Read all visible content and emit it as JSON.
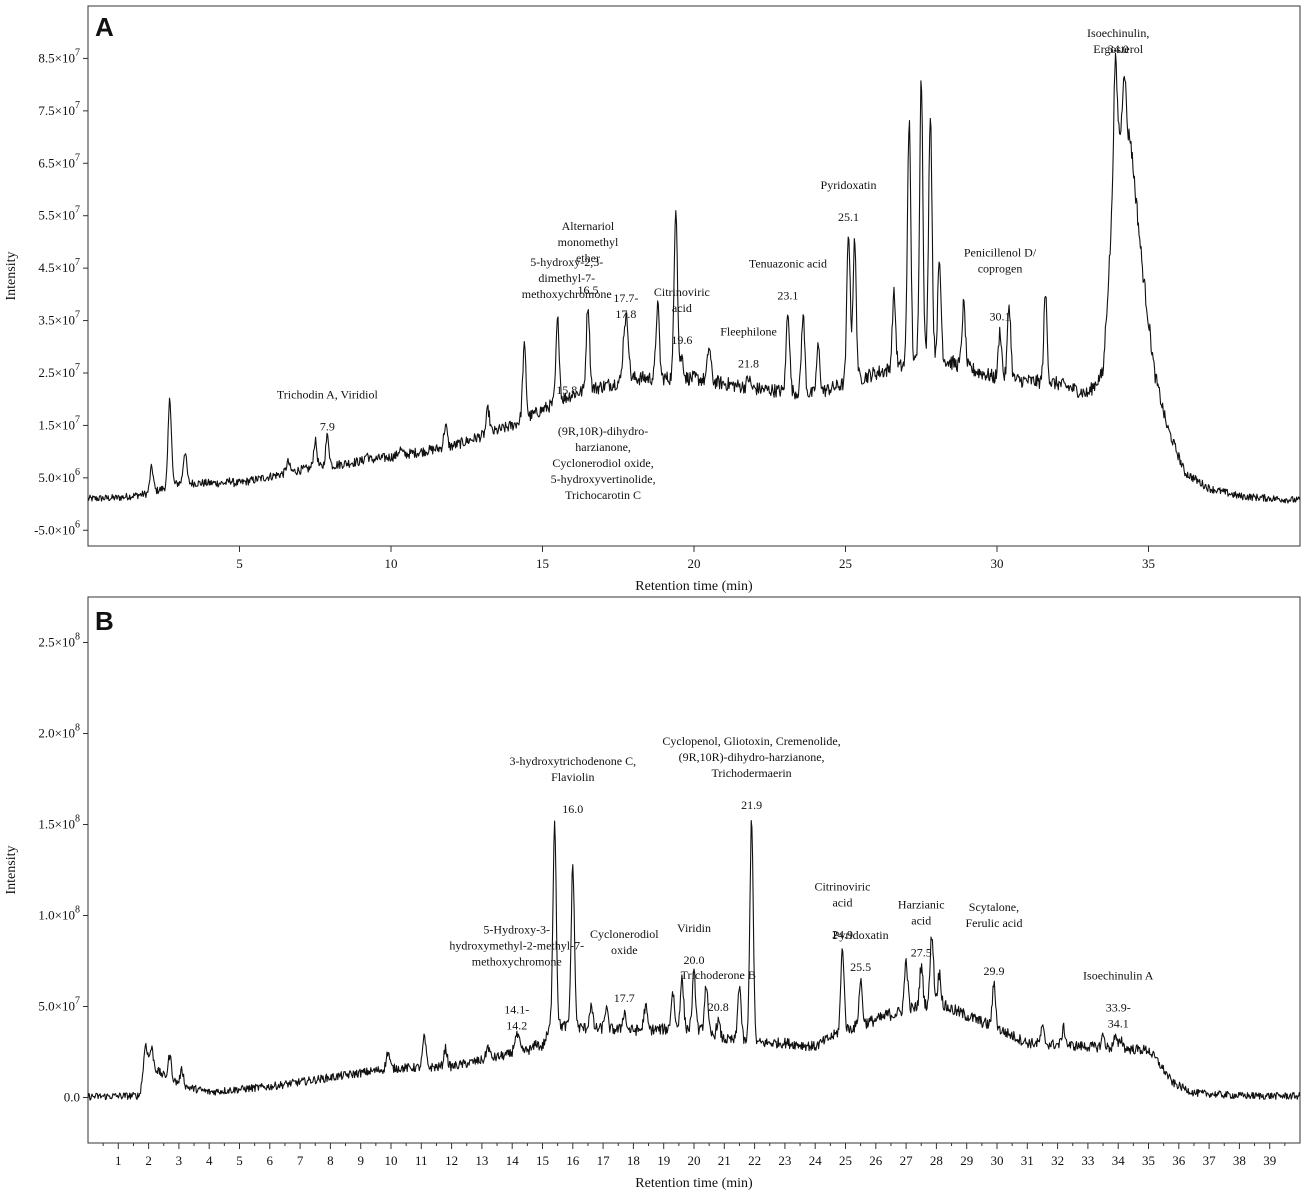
{
  "chart_data": [
    {
      "type": "line",
      "panel": "A",
      "xlabel": "Retention time (min)",
      "ylabel": "Intensity",
      "xlim": [
        0,
        40
      ],
      "ylim": [
        -8000000,
        95000000
      ],
      "x_ticks": [
        5,
        10,
        15,
        20,
        25,
        30,
        35
      ],
      "y_ticks": [
        {
          "value": -5000000,
          "mant": "-5.0×10",
          "exp": "6"
        },
        {
          "value": 5000000,
          "mant": "5.0×10",
          "exp": "6"
        },
        {
          "value": 15000000,
          "mant": "1.5×10",
          "exp": "7"
        },
        {
          "value": 25000000,
          "mant": "2.5×10",
          "exp": "7"
        },
        {
          "value": 35000000,
          "mant": "3.5×10",
          "exp": "7"
        },
        {
          "value": 45000000,
          "mant": "4.5×10",
          "exp": "7"
        },
        {
          "value": 55000000,
          "mant": "5.5×10",
          "exp": "7"
        },
        {
          "value": 65000000,
          "mant": "6.5×10",
          "exp": "7"
        },
        {
          "value": 75000000,
          "mant": "7.5×10",
          "exp": "7"
        },
        {
          "value": 85000000,
          "mant": "8.5×10",
          "exp": "7"
        }
      ],
      "grid": false,
      "baseline": [
        [
          0,
          1000000
        ],
        [
          1,
          1200000
        ],
        [
          2,
          2000000
        ],
        [
          3,
          4000000
        ],
        [
          5,
          4000000
        ],
        [
          7,
          6500000
        ],
        [
          10,
          9000000
        ],
        [
          12,
          11000000
        ],
        [
          14,
          15000000
        ],
        [
          16,
          21000000
        ],
        [
          18,
          24000000
        ],
        [
          20,
          24000000
        ],
        [
          22,
          22000000
        ],
        [
          24,
          21000000
        ],
        [
          26,
          25000000
        ],
        [
          28,
          28000000
        ],
        [
          30,
          24000000
        ],
        [
          32,
          23000000
        ],
        [
          33,
          21000000
        ],
        [
          33.5,
          25000000
        ],
        [
          33.8,
          55000000
        ],
        [
          34,
          70000000
        ],
        [
          34.4,
          70000000
        ],
        [
          34.8,
          45000000
        ],
        [
          35.2,
          25000000
        ],
        [
          35.6,
          15000000
        ],
        [
          36.2,
          6000000
        ],
        [
          37,
          3000000
        ],
        [
          38,
          1500000
        ],
        [
          40,
          700000
        ]
      ],
      "peaks": [
        [
          2.1,
          7000000
        ],
        [
          2.7,
          20000000
        ],
        [
          3.2,
          10000000
        ],
        [
          4.7,
          4500000
        ],
        [
          6.6,
          8000000
        ],
        [
          7.5,
          12000000
        ],
        [
          7.9,
          13000000
        ],
        [
          9.2,
          9500000
        ],
        [
          10.3,
          10500000
        ],
        [
          11.8,
          15000000
        ],
        [
          13.2,
          18000000
        ],
        [
          14.4,
          30000000
        ],
        [
          15.5,
          35000000
        ],
        [
          16.5,
          38000000
        ],
        [
          17.7,
          32000000
        ],
        [
          17.8,
          33000000
        ],
        [
          18.8,
          38000000
        ],
        [
          19.4,
          57000000
        ],
        [
          19.6,
          28000000
        ],
        [
          20.5,
          30000000
        ],
        [
          21.8,
          24000000
        ],
        [
          23.1,
          37000000
        ],
        [
          23.6,
          36000000
        ],
        [
          24.1,
          30000000
        ],
        [
          25.1,
          52000000
        ],
        [
          25.3,
          50000000
        ],
        [
          26.6,
          40000000
        ],
        [
          27.1,
          73000000
        ],
        [
          27.5,
          81000000
        ],
        [
          27.8,
          75000000
        ],
        [
          28.1,
          46000000
        ],
        [
          28.9,
          38000000
        ],
        [
          30.1,
          33000000
        ],
        [
          30.4,
          38000000
        ],
        [
          31.6,
          40000000
        ],
        [
          33.9,
          84000000
        ],
        [
          34.2,
          83000000
        ]
      ],
      "annotations": [
        {
          "x": 7.9,
          "y": 12500000,
          "lines": [
            "Trichodin A, Viridiol",
            "",
            "7.9"
          ]
        },
        {
          "x": 15.8,
          "y": 19500000,
          "lines": [
            "5-hydroxy-2,3-",
            "dimethyl-7-",
            "methoxychromone",
            "",
            "",
            "",
            "",
            "",
            "15.8"
          ]
        },
        {
          "x": 16.5,
          "y": 38500000,
          "lines": [
            "Alternariol",
            "monomethyl",
            "ether",
            "",
            "16.5"
          ]
        },
        {
          "x": 17.75,
          "y": 34000000,
          "lines": [
            "17.7-",
            "17.8"
          ]
        },
        {
          "x": 19.6,
          "y": 29000000,
          "lines": [
            "Citrinoviric",
            "acid",
            "",
            "19.6"
          ]
        },
        {
          "x": 21.8,
          "y": 24500000,
          "lines": [
            "Fleephilone",
            "",
            "21.8"
          ]
        },
        {
          "x": 23.1,
          "y": 37500000,
          "lines": [
            "Tenuazonic acid",
            "",
            "23.1"
          ]
        },
        {
          "x": 25.1,
          "y": 52500000,
          "lines": [
            "Pyridoxatin",
            "",
            "25.1"
          ]
        },
        {
          "x": 30.1,
          "y": 33500000,
          "lines": [
            "Penicillenol D/",
            "coprogen",
            "",
            "",
            "30.1"
          ]
        },
        {
          "x": 34.0,
          "y": 84500000,
          "lines": [
            "Isoechinulin,",
            "Ergosterol"
          ]
        },
        {
          "x": 34.0,
          "y": 84500000,
          "lines": [
            "34.0"
          ]
        },
        {
          "x": 17.0,
          "y": 17000000,
          "lines": [
            "(9R,10R)-dihydro-",
            "harzianone,",
            "Cyclonerodiol oxide,",
            "5-hydroxyvertinolide,",
            "Trichocarotin C"
          ]
        }
      ]
    },
    {
      "type": "line",
      "panel": "B",
      "xlabel": "Retention time (min)",
      "ylabel": "Intensity",
      "xlim": [
        0,
        40
      ],
      "ylim": [
        -25000000,
        275000000
      ],
      "x_ticks": [
        1,
        2,
        3,
        4,
        5,
        6,
        7,
        8,
        9,
        10,
        11,
        12,
        13,
        14,
        15,
        16,
        17,
        18,
        19,
        20,
        21,
        22,
        23,
        24,
        25,
        26,
        27,
        28,
        29,
        30,
        31,
        32,
        33,
        34,
        35,
        36,
        37,
        38,
        39
      ],
      "y_ticks": [
        {
          "value": 0,
          "mant": "0.0",
          "exp": ""
        },
        {
          "value": 50000000,
          "mant": "5.0×10",
          "exp": "7"
        },
        {
          "value": 100000000,
          "mant": "1.0×10",
          "exp": "8"
        },
        {
          "value": 150000000,
          "mant": "1.5×10",
          "exp": "8"
        },
        {
          "value": 200000000,
          "mant": "2.0×10",
          "exp": "8"
        },
        {
          "value": 250000000,
          "mant": "2.5×10",
          "exp": "8"
        }
      ],
      "grid": false,
      "baseline": [
        [
          0,
          500000
        ],
        [
          1.7,
          1000000
        ],
        [
          1.9,
          20000000
        ],
        [
          2.5,
          12000000
        ],
        [
          3.2,
          6000000
        ],
        [
          4,
          3000000
        ],
        [
          6,
          6000000
        ],
        [
          8,
          11000000
        ],
        [
          10,
          16000000
        ],
        [
          12,
          17000000
        ],
        [
          14,
          24000000
        ],
        [
          15,
          28000000
        ],
        [
          15.3,
          40000000
        ],
        [
          16.5,
          38000000
        ],
        [
          18,
          37000000
        ],
        [
          20,
          38000000
        ],
        [
          21,
          32000000
        ],
        [
          22,
          30000000
        ],
        [
          23,
          30000000
        ],
        [
          24,
          28000000
        ],
        [
          24.7,
          35000000
        ],
        [
          25.5,
          40000000
        ],
        [
          27,
          48000000
        ],
        [
          28,
          52000000
        ],
        [
          29,
          45000000
        ],
        [
          30,
          38000000
        ],
        [
          31,
          30000000
        ],
        [
          32,
          29000000
        ],
        [
          33,
          28000000
        ],
        [
          34,
          27000000
        ],
        [
          35,
          26000000
        ],
        [
          35.3,
          20000000
        ],
        [
          35.8,
          8000000
        ],
        [
          36.5,
          2500000
        ],
        [
          38,
          1000000
        ],
        [
          40,
          800000
        ]
      ],
      "peaks": [
        [
          1.9,
          30000000
        ],
        [
          2.1,
          27000000
        ],
        [
          2.7,
          23000000
        ],
        [
          3.1,
          15000000
        ],
        [
          9.9,
          25000000
        ],
        [
          11.1,
          33000000
        ],
        [
          11.8,
          27000000
        ],
        [
          13.2,
          28000000
        ],
        [
          14.1,
          31000000
        ],
        [
          14.2,
          32000000
        ],
        [
          14.8,
          30000000
        ],
        [
          15.4,
          151000000
        ],
        [
          16.0,
          127000000
        ],
        [
          16.6,
          50000000
        ],
        [
          17.1,
          49000000
        ],
        [
          17.7,
          47000000
        ],
        [
          18.4,
          50000000
        ],
        [
          19.3,
          58000000
        ],
        [
          19.6,
          65000000
        ],
        [
          20.0,
          68000000
        ],
        [
          20.4,
          62000000
        ],
        [
          20.8,
          42000000
        ],
        [
          21.5,
          62000000
        ],
        [
          21.9,
          153000000
        ],
        [
          24.9,
          82000000
        ],
        [
          25.5,
          64000000
        ],
        [
          26.4,
          46000000
        ],
        [
          27.0,
          75000000
        ],
        [
          27.5,
          72000000
        ],
        [
          27.85,
          90000000
        ],
        [
          28.1,
          68000000
        ],
        [
          29.9,
          62000000
        ],
        [
          31.5,
          38000000
        ],
        [
          32.2,
          38000000
        ],
        [
          33.5,
          34000000
        ],
        [
          33.9,
          33000000
        ],
        [
          34.1,
          32000000
        ]
      ],
      "annotations": [
        {
          "x": 14.15,
          "y": 33000000,
          "lines": [
            "5-Hydroxy-3-",
            "hydroxymethyl-2-methyl-7-",
            "methoxychromone",
            "",
            "",
            "14.1-",
            "14.2"
          ]
        },
        {
          "x": 16.0,
          "y": 152000000,
          "lines": [
            "3-hydroxytrichodenone C,",
            "Flaviolin",
            "",
            "16.0"
          ]
        },
        {
          "x": 17.7,
          "y": 48000000,
          "lines": [
            "Cyclonerodiol",
            "oxide",
            "",
            "",
            "17.7"
          ]
        },
        {
          "x": 20.0,
          "y": 69000000,
          "lines": [
            "Viridin",
            "",
            "20.0"
          ]
        },
        {
          "x": 20.8,
          "y": 43000000,
          "lines": [
            "Trichoderone B",
            "",
            "20.8"
          ]
        },
        {
          "x": 21.9,
          "y": 154000000,
          "lines": [
            "Cyclopenol, Gliotoxin, Cremenolide,",
            "(9R,10R)-dihydro-harzianone,",
            "Trichodermaerin",
            "",
            "21.9"
          ]
        },
        {
          "x": 24.9,
          "y": 83000000,
          "lines": [
            "Citrinoviric",
            "acid",
            "",
            "24.9"
          ]
        },
        {
          "x": 25.5,
          "y": 65000000,
          "lines": [
            "Pyridoxatin",
            "",
            "25.5"
          ]
        },
        {
          "x": 27.5,
          "y": 73000000,
          "lines": [
            "Harzianic",
            "acid",
            "",
            "27.5"
          ]
        },
        {
          "x": 29.9,
          "y": 63000000,
          "lines": [
            "Scytalone,",
            "Ferulic acid",
            "",
            "",
            "29.9"
          ]
        },
        {
          "x": 34.0,
          "y": 34000000,
          "lines": [
            "Isoechinulin A",
            "",
            "33.9-",
            "34.1"
          ]
        }
      ]
    }
  ]
}
